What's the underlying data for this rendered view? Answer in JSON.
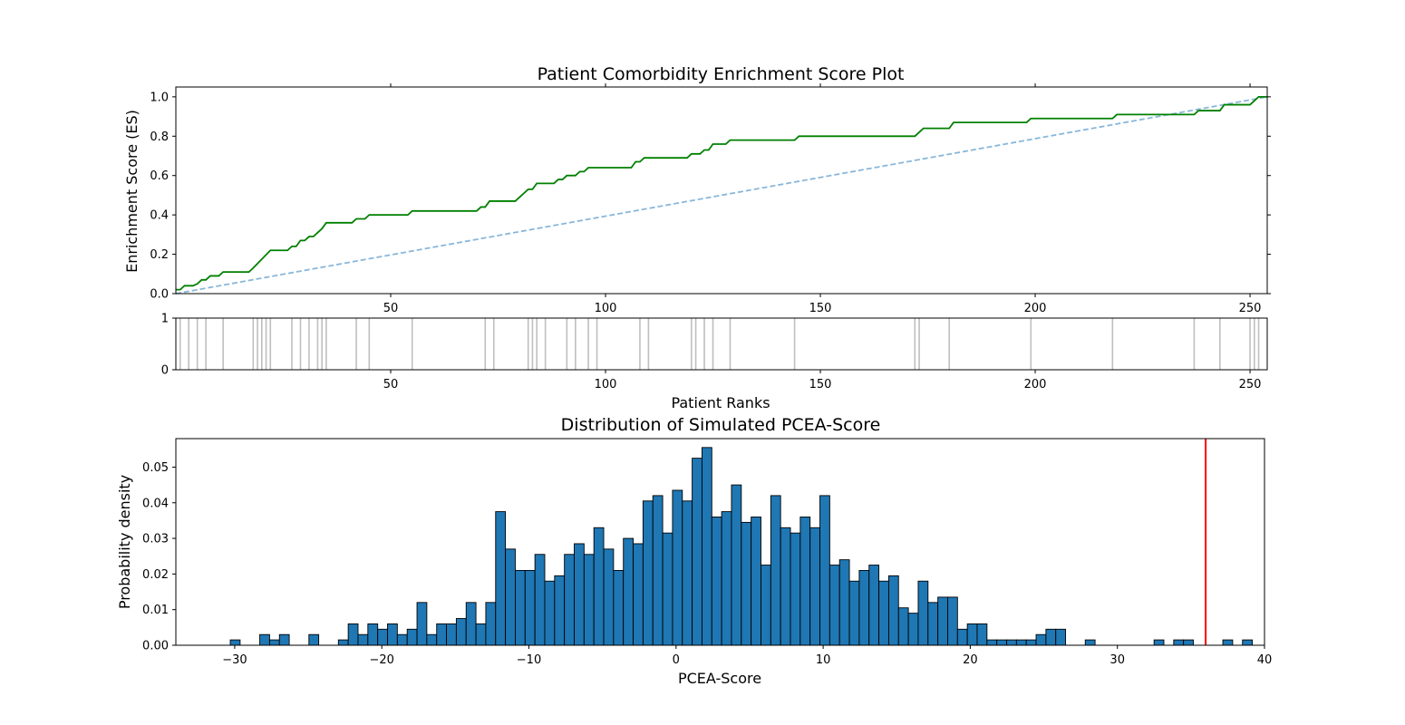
{
  "chart_data": [
    {
      "type": "line",
      "title": "Patient Comorbidity Enrichment Score Plot",
      "xlabel": "",
      "ylabel": "Enrichment Score (ES)",
      "xlim": [
        0,
        254
      ],
      "ylim": [
        0,
        1.05
      ],
      "x_ticks": [
        "50",
        "100",
        "150",
        "200",
        "250"
      ],
      "x_tick_values": [
        50,
        100,
        150,
        200,
        250
      ],
      "y_ticks": [
        "0.0",
        "0.2",
        "0.4",
        "0.6",
        "0.8",
        "1.0"
      ],
      "y_tick_values": [
        0.0,
        0.2,
        0.4,
        0.6,
        0.8,
        1.0
      ],
      "series": [
        {
          "style": "solid",
          "color": "#008000",
          "x": [
            0,
            1,
            2,
            4,
            5,
            6,
            7,
            8,
            10,
            11,
            12,
            17,
            18,
            22,
            26,
            27,
            28,
            29,
            30,
            31,
            32,
            33,
            34,
            35,
            36,
            37,
            41,
            42,
            43,
            44,
            45,
            46,
            47,
            54,
            55,
            56,
            57,
            70,
            71,
            72,
            73,
            74,
            75,
            79,
            80,
            81,
            82,
            83,
            84,
            85,
            86,
            87,
            88,
            89,
            90,
            91,
            92,
            93,
            94,
            95,
            96,
            97,
            98,
            99,
            100,
            101,
            106,
            107,
            108,
            109,
            110,
            119,
            120,
            121,
            122,
            123,
            124,
            125,
            126,
            127,
            128,
            129,
            130,
            143,
            144,
            145,
            146,
            171,
            172,
            173,
            174,
            179,
            180,
            181,
            197,
            198,
            199,
            217,
            218,
            219,
            236,
            237,
            238,
            242,
            243,
            244,
            249,
            250,
            251,
            252,
            253,
            254
          ],
          "y": [
            0.02,
            0.02,
            0.04,
            0.04,
            0.05,
            0.07,
            0.07,
            0.09,
            0.09,
            0.11,
            0.11,
            0.11,
            0.13,
            0.22,
            0.22,
            0.24,
            0.24,
            0.27,
            0.27,
            0.29,
            0.29,
            0.31,
            0.33,
            0.36,
            0.36,
            0.36,
            0.36,
            0.38,
            0.38,
            0.38,
            0.4,
            0.4,
            0.4,
            0.4,
            0.42,
            0.42,
            0.42,
            0.42,
            0.44,
            0.44,
            0.47,
            0.47,
            0.47,
            0.47,
            0.49,
            0.51,
            0.53,
            0.53,
            0.56,
            0.56,
            0.56,
            0.56,
            0.56,
            0.58,
            0.58,
            0.6,
            0.6,
            0.6,
            0.62,
            0.62,
            0.64,
            0.64,
            0.64,
            0.64,
            0.64,
            0.64,
            0.64,
            0.67,
            0.67,
            0.69,
            0.69,
            0.69,
            0.71,
            0.71,
            0.71,
            0.73,
            0.73,
            0.76,
            0.76,
            0.76,
            0.76,
            0.78,
            0.78,
            0.78,
            0.78,
            0.8,
            0.8,
            0.8,
            0.8,
            0.82,
            0.84,
            0.84,
            0.84,
            0.87,
            0.87,
            0.87,
            0.89,
            0.89,
            0.89,
            0.91,
            0.91,
            0.91,
            0.93,
            0.93,
            0.93,
            0.96,
            0.96,
            0.96,
            0.98,
            1.0,
            1.0,
            1.0
          ]
        },
        {
          "style": "dashed",
          "color": "#89b7d9",
          "x": [
            0,
            254
          ],
          "y": [
            0.0,
            1.0
          ]
        }
      ]
    },
    {
      "type": "bar",
      "subtype": "rug",
      "title": "",
      "xlabel": "Patient Ranks",
      "ylabel": "",
      "xlim": [
        0,
        254
      ],
      "ylim": [
        0,
        1
      ],
      "x_ticks": [
        "50",
        "100",
        "150",
        "200",
        "250"
      ],
      "x_tick_values": [
        50,
        100,
        150,
        200,
        250
      ],
      "y_ticks": [
        "0",
        "1"
      ],
      "y_tick_values": [
        0,
        1
      ],
      "color": "#bfbfbf",
      "positions": [
        1,
        3,
        5,
        7,
        11,
        18,
        19,
        20,
        21,
        22,
        27,
        29,
        31,
        33,
        34,
        35,
        42,
        45,
        55,
        72,
        74,
        82,
        83,
        84,
        86,
        91,
        93,
        96,
        98,
        108,
        110,
        120,
        121,
        123,
        125,
        129,
        144,
        172,
        173,
        180,
        199,
        218,
        237,
        243,
        250,
        251,
        252
      ]
    },
    {
      "type": "bar",
      "subtype": "histogram",
      "title": "Distribution of Simulated PCEA-Score",
      "xlabel": "PCEA-Score",
      "ylabel": "Probability density",
      "xlim": [
        -34,
        40
      ],
      "ylim": [
        0,
        0.058
      ],
      "x_ticks": [
        "−30",
        "−20",
        "−10",
        "0",
        "10",
        "20",
        "30",
        "40"
      ],
      "x_tick_values": [
        -30,
        -20,
        -10,
        0,
        10,
        20,
        30,
        40
      ],
      "y_ticks": [
        "0.00",
        "0.01",
        "0.02",
        "0.03",
        "0.04",
        "0.05"
      ],
      "y_tick_values": [
        0.0,
        0.01,
        0.02,
        0.03,
        0.04,
        0.05
      ],
      "color": "#1f77b4",
      "bin_start": -30.3,
      "bin_width": 0.668,
      "values": [
        0.0015,
        0,
        0,
        0.003,
        0.0015,
        0.003,
        0,
        0,
        0.003,
        0,
        0,
        0.0015,
        0.006,
        0.003,
        0.006,
        0.0045,
        0.006,
        0.003,
        0.0045,
        0.012,
        0.003,
        0.006,
        0.006,
        0.0075,
        0.012,
        0.006,
        0.012,
        0.0375,
        0.027,
        0.021,
        0.021,
        0.0255,
        0.018,
        0.0195,
        0.0255,
        0.0285,
        0.0255,
        0.033,
        0.027,
        0.021,
        0.03,
        0.0285,
        0.0405,
        0.042,
        0.0315,
        0.0435,
        0.0405,
        0.0525,
        0.0555,
        0.036,
        0.0375,
        0.045,
        0.0345,
        0.036,
        0.0225,
        0.042,
        0.033,
        0.0315,
        0.036,
        0.033,
        0.042,
        0.0225,
        0.024,
        0.018,
        0.021,
        0.0225,
        0.018,
        0.0195,
        0.0105,
        0.009,
        0.018,
        0.012,
        0.0135,
        0.0135,
        0.0045,
        0.006,
        0.006,
        0.0015,
        0.0015,
        0.0015,
        0.0015,
        0.0015,
        0.003,
        0.0045,
        0.0045,
        0,
        0,
        0.0015,
        0,
        0,
        0,
        0,
        0,
        0,
        0.0015,
        0,
        0.0015,
        0.0015,
        0,
        0,
        0,
        0.0015,
        0,
        0.0015
      ],
      "observed_line": {
        "x": 36,
        "color": "#ff0000"
      }
    }
  ]
}
